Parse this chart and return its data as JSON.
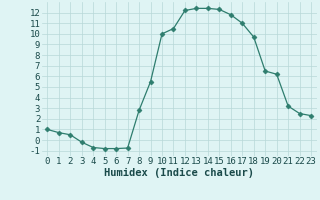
{
  "x": [
    0,
    1,
    2,
    3,
    4,
    5,
    6,
    7,
    8,
    9,
    10,
    11,
    12,
    13,
    14,
    15,
    16,
    17,
    18,
    19,
    20,
    21,
    22,
    23
  ],
  "y": [
    1.0,
    0.7,
    0.5,
    -0.2,
    -0.7,
    -0.8,
    -0.8,
    -0.75,
    2.8,
    5.5,
    10.0,
    10.5,
    12.2,
    12.4,
    12.4,
    12.3,
    11.8,
    11.0,
    9.7,
    6.5,
    6.2,
    3.2,
    2.5,
    2.3
  ],
  "line_color": "#2e7d6e",
  "marker": "D",
  "marker_size": 2.5,
  "bg_color": "#dff4f4",
  "grid_color": "#b8d8d8",
  "xlabel": "Humidex (Indice chaleur)",
  "xlim": [
    -0.5,
    23.5
  ],
  "ylim": [
    -1.5,
    13.0
  ],
  "yticks": [
    -1,
    0,
    1,
    2,
    3,
    4,
    5,
    6,
    7,
    8,
    9,
    10,
    11,
    12
  ],
  "xticks": [
    0,
    1,
    2,
    3,
    4,
    5,
    6,
    7,
    8,
    9,
    10,
    11,
    12,
    13,
    14,
    15,
    16,
    17,
    18,
    19,
    20,
    21,
    22,
    23
  ],
  "tick_color": "#1a4a4a",
  "font_size": 6.5,
  "label_font_size": 7.5
}
